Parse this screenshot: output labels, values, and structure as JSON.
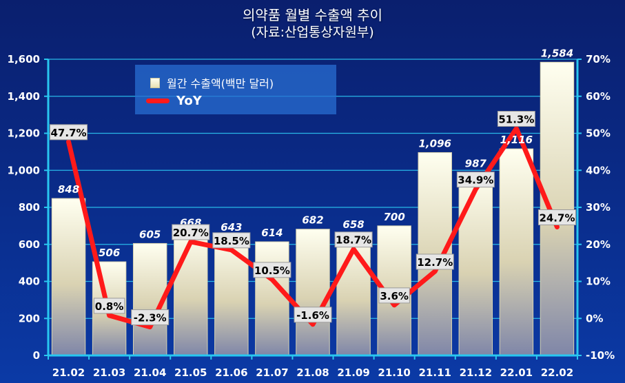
{
  "chart_data": {
    "type": "bar",
    "title": "의약품 월별 수출액 추이",
    "subtitle": "(자료:산업통상자원부)",
    "categories": [
      "21.02",
      "21.03",
      "21.04",
      "21.05",
      "21.06",
      "21.07",
      "21.08",
      "21.09",
      "21.10",
      "21.11",
      "21.12",
      "22.01",
      "22.02"
    ],
    "series": [
      {
        "name": "월간 수출액(백만 달러)",
        "type": "bar",
        "axis": "left",
        "values": [
          848,
          506,
          605,
          668,
          643,
          614,
          682,
          658,
          700,
          1096,
          987,
          1116,
          1584
        ],
        "labels": [
          "848",
          "506",
          "605",
          "668",
          "643",
          "614",
          "682",
          "658",
          "700",
          "1,096",
          "987",
          "1,116",
          "1,584"
        ]
      },
      {
        "name": "YoY",
        "type": "line",
        "axis": "right",
        "values": [
          47.7,
          0.8,
          -2.3,
          20.7,
          18.5,
          10.5,
          -1.6,
          18.7,
          3.6,
          12.7,
          34.9,
          51.3,
          24.7
        ],
        "labels": [
          "47.7%",
          "0.8%",
          "-2.3%",
          "20.7%",
          "18.5%",
          "10.5%",
          "-1.6%",
          "18.7%",
          "3.6%",
          "12.7%",
          "34.9%",
          "51.3%",
          "24.7%"
        ]
      }
    ],
    "y_left": {
      "lim": [
        0,
        1600
      ],
      "ticks": [
        0,
        200,
        400,
        600,
        800,
        1000,
        1200,
        1400,
        1600
      ],
      "tick_labels": [
        "0",
        "200",
        "400",
        "600",
        "800",
        "1,000",
        "1,200",
        "1,400",
        "1,600"
      ]
    },
    "y_right": {
      "lim": [
        -10,
        70
      ],
      "ticks": [
        -10,
        0,
        10,
        20,
        30,
        40,
        50,
        60,
        70
      ],
      "tick_labels": [
        "-10%",
        "0%",
        "10%",
        "20%",
        "30%",
        "40%",
        "50%",
        "60%",
        "70%"
      ]
    },
    "grid": true,
    "legend_position": "top-left",
    "colors": {
      "background_top": "#0a1f6e",
      "background_bottom": "#0b3aa6",
      "axis": "#29c7f0",
      "grid": "#29b8e8",
      "bar_top": "#fffff0",
      "bar_bottom": "#7f86a8",
      "line": "#ff1a1a",
      "label_bg": "#e6e6e6"
    }
  }
}
